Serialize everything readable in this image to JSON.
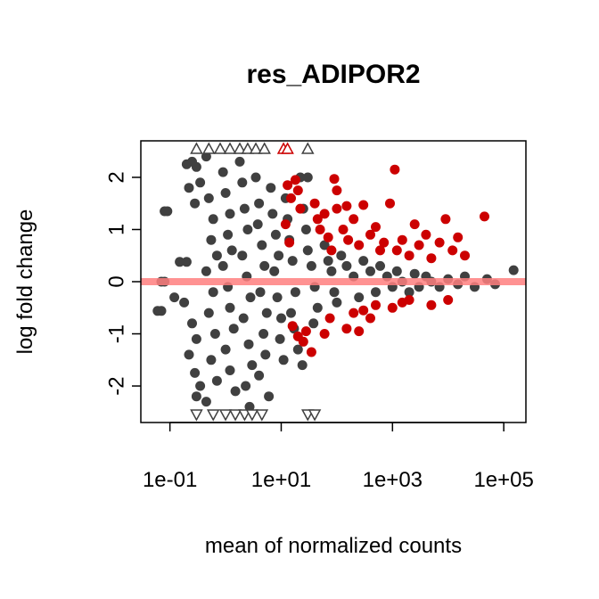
{
  "chart_data": {
    "type": "scatter",
    "title": "res_ADIPOR2",
    "xlabel": "mean of normalized counts",
    "ylabel": "log fold change",
    "x_scale": "log10",
    "xlim": [
      0.03,
      250000
    ],
    "ylim": [
      -2.7,
      2.7
    ],
    "x_ticks": [
      {
        "value": 0.1,
        "label": "1e-01"
      },
      {
        "value": 10,
        "label": "1e+01"
      },
      {
        "value": 1000,
        "label": "1e+03"
      },
      {
        "value": 100000,
        "label": "1e+05"
      }
    ],
    "y_ticks": [
      {
        "value": -2,
        "label": "-2"
      },
      {
        "value": -1,
        "label": "-1"
      },
      {
        "value": 0,
        "label": "0"
      },
      {
        "value": 1,
        "label": "1"
      },
      {
        "value": 2,
        "label": "2"
      }
    ],
    "reference_line": {
      "y": 0,
      "color": "#ff7f7f"
    },
    "colors": {
      "not_significant": "#404040",
      "significant": "#cc0000",
      "frame": "#000000"
    },
    "series": [
      {
        "points": [
          [
            0.08,
            1.35
          ],
          [
            0.09,
            1.35
          ],
          [
            0.07,
            0.0
          ],
          [
            0.08,
            0.0
          ],
          [
            0.06,
            -0.56
          ],
          [
            0.07,
            -0.56
          ],
          [
            0.2,
            2.25
          ],
          [
            0.25,
            2.3
          ],
          [
            0.3,
            2.2
          ],
          [
            0.22,
            1.8
          ],
          [
            0.28,
            1.5
          ],
          [
            0.35,
            1.9
          ],
          [
            0.15,
            0.38
          ],
          [
            0.2,
            0.38
          ],
          [
            0.12,
            -0.3
          ],
          [
            0.18,
            -0.4
          ],
          [
            0.25,
            -0.8
          ],
          [
            0.3,
            -1.1
          ],
          [
            0.22,
            -1.4
          ],
          [
            0.28,
            -1.75
          ],
          [
            0.35,
            -2.0
          ],
          [
            0.3,
            -2.2
          ],
          [
            0.45,
            2.4
          ],
          [
            0.5,
            1.6
          ],
          [
            0.6,
            1.2
          ],
          [
            0.55,
            0.8
          ],
          [
            0.7,
            0.5
          ],
          [
            0.45,
            0.2
          ],
          [
            0.6,
            -0.2
          ],
          [
            0.5,
            -0.6
          ],
          [
            0.65,
            -1.0
          ],
          [
            0.55,
            -1.5
          ],
          [
            0.7,
            -1.9
          ],
          [
            0.45,
            -2.3
          ],
          [
            0.9,
            2.1
          ],
          [
            1.0,
            1.7
          ],
          [
            1.2,
            1.3
          ],
          [
            1.1,
            0.9
          ],
          [
            1.3,
            0.6
          ],
          [
            0.9,
            0.3
          ],
          [
            1.1,
            -0.1
          ],
          [
            1.2,
            -0.5
          ],
          [
            1.4,
            -0.9
          ],
          [
            1.0,
            -1.3
          ],
          [
            1.2,
            -1.7
          ],
          [
            1.5,
            -2.1
          ],
          [
            1.8,
            2.3
          ],
          [
            2.0,
            1.9
          ],
          [
            2.2,
            1.4
          ],
          [
            2.5,
            1.0
          ],
          [
            2.0,
            0.5
          ],
          [
            2.4,
            0.1
          ],
          [
            2.8,
            -0.3
          ],
          [
            2.1,
            -0.7
          ],
          [
            2.6,
            -1.2
          ],
          [
            3.0,
            -1.6
          ],
          [
            2.3,
            -2.0
          ],
          [
            2.7,
            -2.4
          ],
          [
            3.5,
            2.0
          ],
          [
            4.0,
            1.5
          ],
          [
            3.8,
            1.1
          ],
          [
            4.5,
            0.7
          ],
          [
            5.0,
            0.3
          ],
          [
            4.2,
            -0.2
          ],
          [
            5.5,
            -0.6
          ],
          [
            4.8,
            -1.0
          ],
          [
            5.2,
            -1.4
          ],
          [
            4.0,
            -1.8
          ],
          [
            6.0,
            -2.2
          ],
          [
            6.5,
            1.8
          ],
          [
            7.0,
            1.3
          ],
          [
            8.0,
            0.9
          ],
          [
            9.0,
            0.5
          ],
          [
            7.5,
            0.2
          ],
          [
            8.5,
            -0.3
          ],
          [
            10.0,
            -0.7
          ],
          [
            9.5,
            -1.1
          ],
          [
            11.0,
            -1.5
          ],
          [
            12.0,
            1.6
          ],
          [
            13.0,
            1.2
          ],
          [
            14.0,
            0.8
          ],
          [
            16.0,
            0.4
          ],
          [
            18.0,
            -0.2
          ],
          [
            15.0,
            -0.6
          ],
          [
            17.0,
            -0.9
          ],
          [
            20.0,
            -1.3
          ],
          [
            25.0,
            1.4
          ],
          [
            28.0,
            1.0
          ],
          [
            30.0,
            0.6
          ],
          [
            35.0,
            0.3
          ],
          [
            40.0,
            -0.1
          ],
          [
            45.0,
            -0.5
          ],
          [
            38.0,
            -0.8
          ],
          [
            22.0,
            2.0
          ],
          [
            30.0,
            2.0
          ],
          [
            24.0,
            -1.6
          ],
          [
            60.0,
            0.7
          ],
          [
            70.0,
            0.4
          ],
          [
            80.0,
            0.2
          ],
          [
            90.0,
            -0.2
          ],
          [
            100.0,
            -0.4
          ],
          [
            120.0,
            0.5
          ],
          [
            150.0,
            0.3
          ],
          [
            200.0,
            0.1
          ],
          [
            250.0,
            -0.3
          ],
          [
            300.0,
            0.4
          ],
          [
            400.0,
            0.2
          ],
          [
            500.0,
            -0.2
          ],
          [
            600.0,
            0.3
          ],
          [
            800.0,
            0.1
          ],
          [
            1000.0,
            -0.1
          ],
          [
            1200.0,
            0.2
          ],
          [
            1500.0,
            0.0
          ],
          [
            2000.0,
            -0.2
          ],
          [
            2500.0,
            0.15
          ],
          [
            3000.0,
            -0.1
          ],
          [
            4000.0,
            0.1
          ],
          [
            5000.0,
            0.0
          ],
          [
            7000.0,
            -0.1
          ],
          [
            10000.0,
            0.05
          ],
          [
            15000.0,
            -0.05
          ],
          [
            20000.0,
            0.1
          ],
          [
            30000.0,
            -0.1
          ],
          [
            50000.0,
            0.05
          ],
          [
            70000.0,
            -0.05
          ],
          [
            150000.0,
            0.22
          ]
        ],
        "up_triangles_at_top_edge": [
          0.3,
          0.5,
          0.8,
          1.2,
          1.8,
          2.5,
          3.5,
          5.0,
          30.0
        ],
        "down_triangles_at_bottom_edge": [
          0.3,
          0.6,
          1.0,
          1.5,
          2.2,
          3.0,
          4.5,
          30.0,
          40.0
        ]
      },
      {
        "points": [
          [
            13.0,
            1.85
          ],
          [
            15.0,
            1.6
          ],
          [
            12.0,
            1.1
          ],
          [
            14.0,
            0.75
          ],
          [
            18.0,
            1.95
          ],
          [
            20.0,
            1.75
          ],
          [
            22.0,
            1.4
          ],
          [
            16.0,
            -0.85
          ],
          [
            20.0,
            -1.05
          ],
          [
            25.0,
            -1.15
          ],
          [
            28.0,
            -0.95
          ],
          [
            35.0,
            -1.35
          ],
          [
            40.0,
            1.5
          ],
          [
            45.0,
            1.2
          ],
          [
            50.0,
            1.0
          ],
          [
            60.0,
            1.3
          ],
          [
            70.0,
            0.85
          ],
          [
            80.0,
            0.6
          ],
          [
            90.0,
            1.97
          ],
          [
            60.0,
            -1.0
          ],
          [
            75.0,
            -0.7
          ],
          [
            100.0,
            1.4
          ],
          [
            130.0,
            1.0
          ],
          [
            160.0,
            0.8
          ],
          [
            200.0,
            1.2
          ],
          [
            250.0,
            0.7
          ],
          [
            300.0,
            1.47
          ],
          [
            400.0,
            0.9
          ],
          [
            500.0,
            1.05
          ],
          [
            600.0,
            0.6
          ],
          [
            150.0,
            -0.9
          ],
          [
            200.0,
            -0.6
          ],
          [
            250.0,
            -0.95
          ],
          [
            300.0,
            -0.55
          ],
          [
            400.0,
            -0.7
          ],
          [
            500.0,
            -0.45
          ],
          [
            700.0,
            0.75
          ],
          [
            900.0,
            1.5
          ],
          [
            1200.0,
            0.6
          ],
          [
            1500.0,
            0.8
          ],
          [
            2000.0,
            0.5
          ],
          [
            2500.0,
            1.1
          ],
          [
            3000.0,
            0.7
          ],
          [
            4000.0,
            0.9
          ],
          [
            5000.0,
            0.45
          ],
          [
            7000.0,
            0.75
          ],
          [
            9000.0,
            1.2
          ],
          [
            12000.0,
            0.6
          ],
          [
            15000.0,
            0.85
          ],
          [
            20000.0,
            0.5
          ],
          [
            1000.0,
            -0.5
          ],
          [
            1500.0,
            -0.4
          ],
          [
            2000.0,
            -0.35
          ],
          [
            5000.0,
            -0.45
          ],
          [
            10000.0,
            -0.35
          ],
          [
            1100.0,
            2.15
          ],
          [
            45000.0,
            1.25
          ],
          [
            100.0,
            1.75
          ],
          [
            150.0,
            1.45
          ]
        ],
        "up_triangles_at_top_edge": [
          11.0,
          13.0
        ]
      }
    ]
  }
}
